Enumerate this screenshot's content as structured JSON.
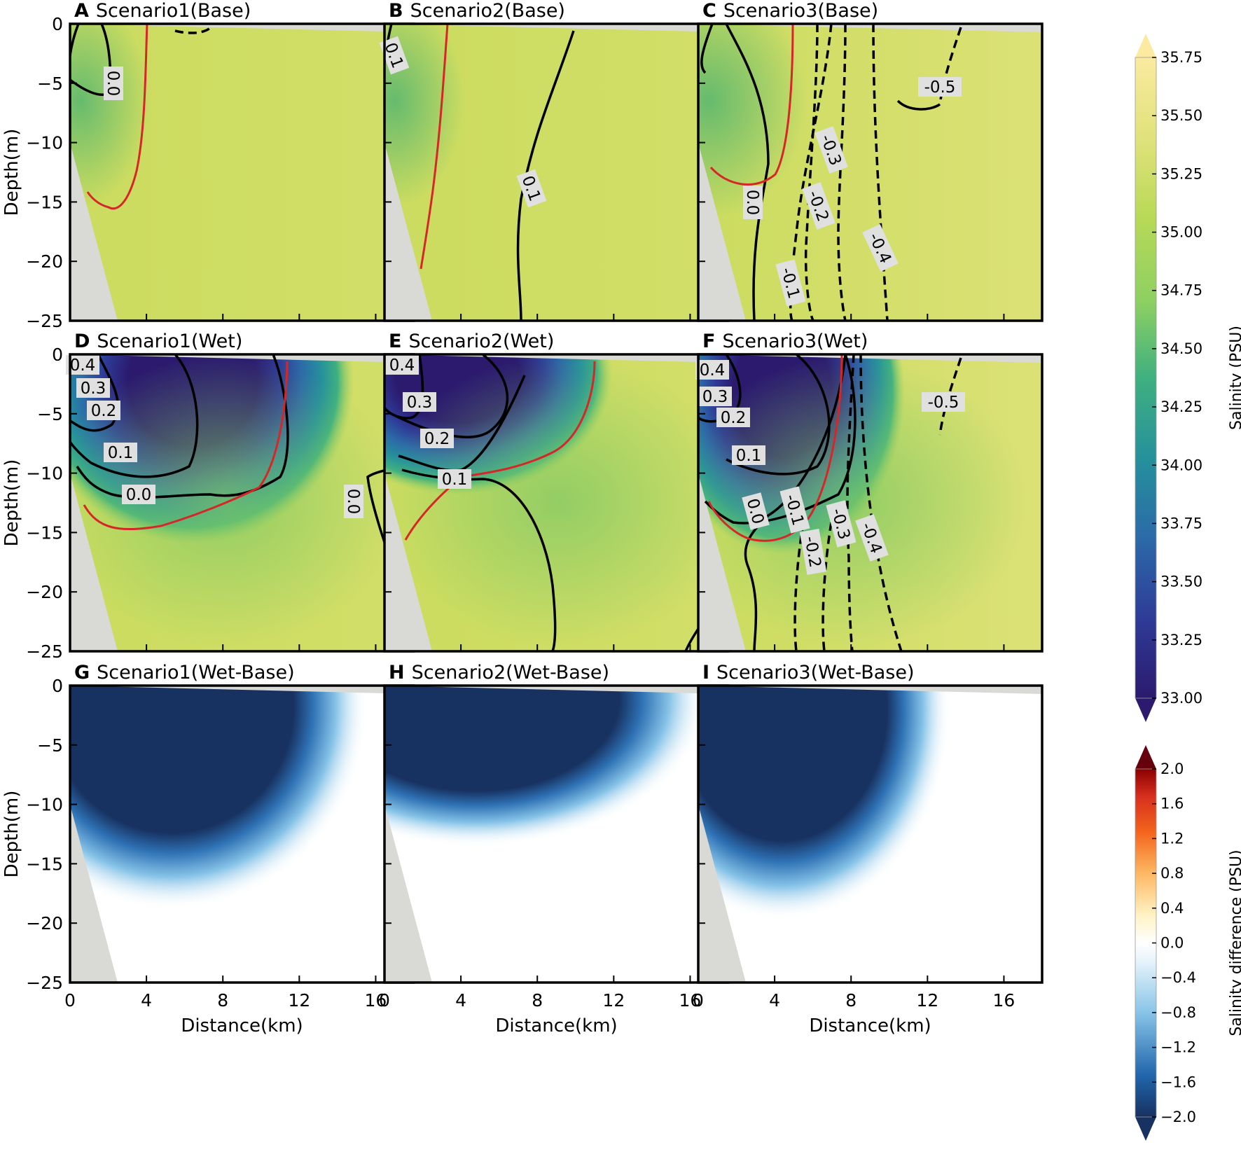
{
  "colors": {
    "land": "#d9d9d6",
    "salinity_ramp": [
      "#2b1a6e",
      "#2e3a96",
      "#2c6aa8",
      "#25909c",
      "#3fb080",
      "#8ed062",
      "#b8d957",
      "#cddc5e",
      "#dfe27a",
      "#fbeaa0"
    ],
    "difference_ramp": [
      "#173160",
      "#2e71b4",
      "#88c4e8",
      "#ffffff",
      "#fde9a7",
      "#f3841d",
      "#b2182b",
      "#67000d"
    ],
    "contour_line": "#000000",
    "reference_contour": "#d62728"
  },
  "chart_data": [
    {
      "panel": "A",
      "title": "Scenario1(Base)",
      "type": "heatmap",
      "field": "salinity",
      "contour_labels": [
        "0.0"
      ],
      "xlim": [
        0,
        18
      ],
      "ylim": [
        -25,
        0
      ],
      "ylabel": "Depth(m)",
      "xlabel": ""
    },
    {
      "panel": "B",
      "title": "Scenario2(Base)",
      "type": "heatmap",
      "field": "salinity",
      "contour_labels": [
        "0.1",
        "0.1"
      ],
      "xlim": [
        0,
        18
      ],
      "ylim": [
        -25,
        0
      ],
      "ylabel": "",
      "xlabel": ""
    },
    {
      "panel": "C",
      "title": "Scenario3(Base)",
      "type": "heatmap",
      "field": "salinity",
      "contour_labels": [
        "-0.5",
        "-0.3",
        "-0.2",
        "0.0",
        "-0.4",
        "-0.1"
      ],
      "xlim": [
        0,
        18
      ],
      "ylim": [
        -25,
        0
      ],
      "ylabel": "",
      "xlabel": ""
    },
    {
      "panel": "D",
      "title": "Scenario1(Wet)",
      "type": "heatmap",
      "field": "salinity",
      "contour_labels": [
        "0.4",
        "0.3",
        "0.2",
        "0.1",
        "0.0",
        "0.0"
      ],
      "xlim": [
        0,
        18
      ],
      "ylim": [
        -25,
        0
      ],
      "ylabel": "Depth(m)",
      "xlabel": ""
    },
    {
      "panel": "E",
      "title": "Scenario2(Wet)",
      "type": "heatmap",
      "field": "salinity",
      "contour_labels": [
        "0.4",
        "0.3",
        "0.2",
        "0.1"
      ],
      "xlim": [
        0,
        18
      ],
      "ylim": [
        -25,
        0
      ],
      "ylabel": "",
      "xlabel": ""
    },
    {
      "panel": "F",
      "title": "Scenario3(Wet)",
      "type": "heatmap",
      "field": "salinity",
      "contour_labels": [
        "0.4",
        "0.3",
        "0.2",
        "0.1",
        "-0.5",
        "0.0",
        "-0.1",
        "-0.3",
        "-0.2",
        "-0.4"
      ],
      "xlim": [
        0,
        18
      ],
      "ylim": [
        -25,
        0
      ],
      "ylabel": "",
      "xlabel": ""
    },
    {
      "panel": "G",
      "title": "Scenario1(Wet-Base)",
      "type": "heatmap",
      "field": "salinity_difference",
      "contour_labels": [],
      "xlim": [
        0,
        18
      ],
      "ylim": [
        -25,
        0
      ],
      "ylabel": "Depth(m)",
      "xlabel": "Distance(km)"
    },
    {
      "panel": "H",
      "title": "Scenario2(Wet-Base)",
      "type": "heatmap",
      "field": "salinity_difference",
      "contour_labels": [],
      "xlim": [
        0,
        18
      ],
      "ylim": [
        -25,
        0
      ],
      "ylabel": "",
      "xlabel": "Distance(km)"
    },
    {
      "panel": "I",
      "title": "Scenario3(Wet-Base)",
      "type": "heatmap",
      "field": "salinity_difference",
      "contour_labels": [],
      "xlim": [
        0,
        18
      ],
      "ylim": [
        -25,
        0
      ],
      "ylabel": "",
      "xlabel": "Distance(km)"
    }
  ],
  "axes": {
    "y_ticks": [
      "0",
      "−5",
      "−10",
      "−15",
      "−20",
      "−25"
    ],
    "x_ticks": [
      "0",
      "4",
      "8",
      "12",
      "16"
    ]
  },
  "colorbars": [
    {
      "name": "salinity",
      "label": "Salinity (PSU)",
      "min": 33.0,
      "max": 35.75,
      "extend": "both",
      "ticks": [
        "35.75",
        "35.50",
        "35.25",
        "35.00",
        "34.75",
        "34.50",
        "34.25",
        "34.00",
        "33.75",
        "33.50",
        "33.25",
        "33.00"
      ]
    },
    {
      "name": "salinity_difference",
      "label": "Salinity difference (PSU)",
      "min": -2.0,
      "max": 2.0,
      "extend": "both",
      "ticks": [
        "2.0",
        "1.6",
        "1.2",
        "0.8",
        "0.4",
        "0.0",
        "−0.4",
        "−0.8",
        "−1.2",
        "−1.6",
        "−2.0"
      ]
    }
  ]
}
